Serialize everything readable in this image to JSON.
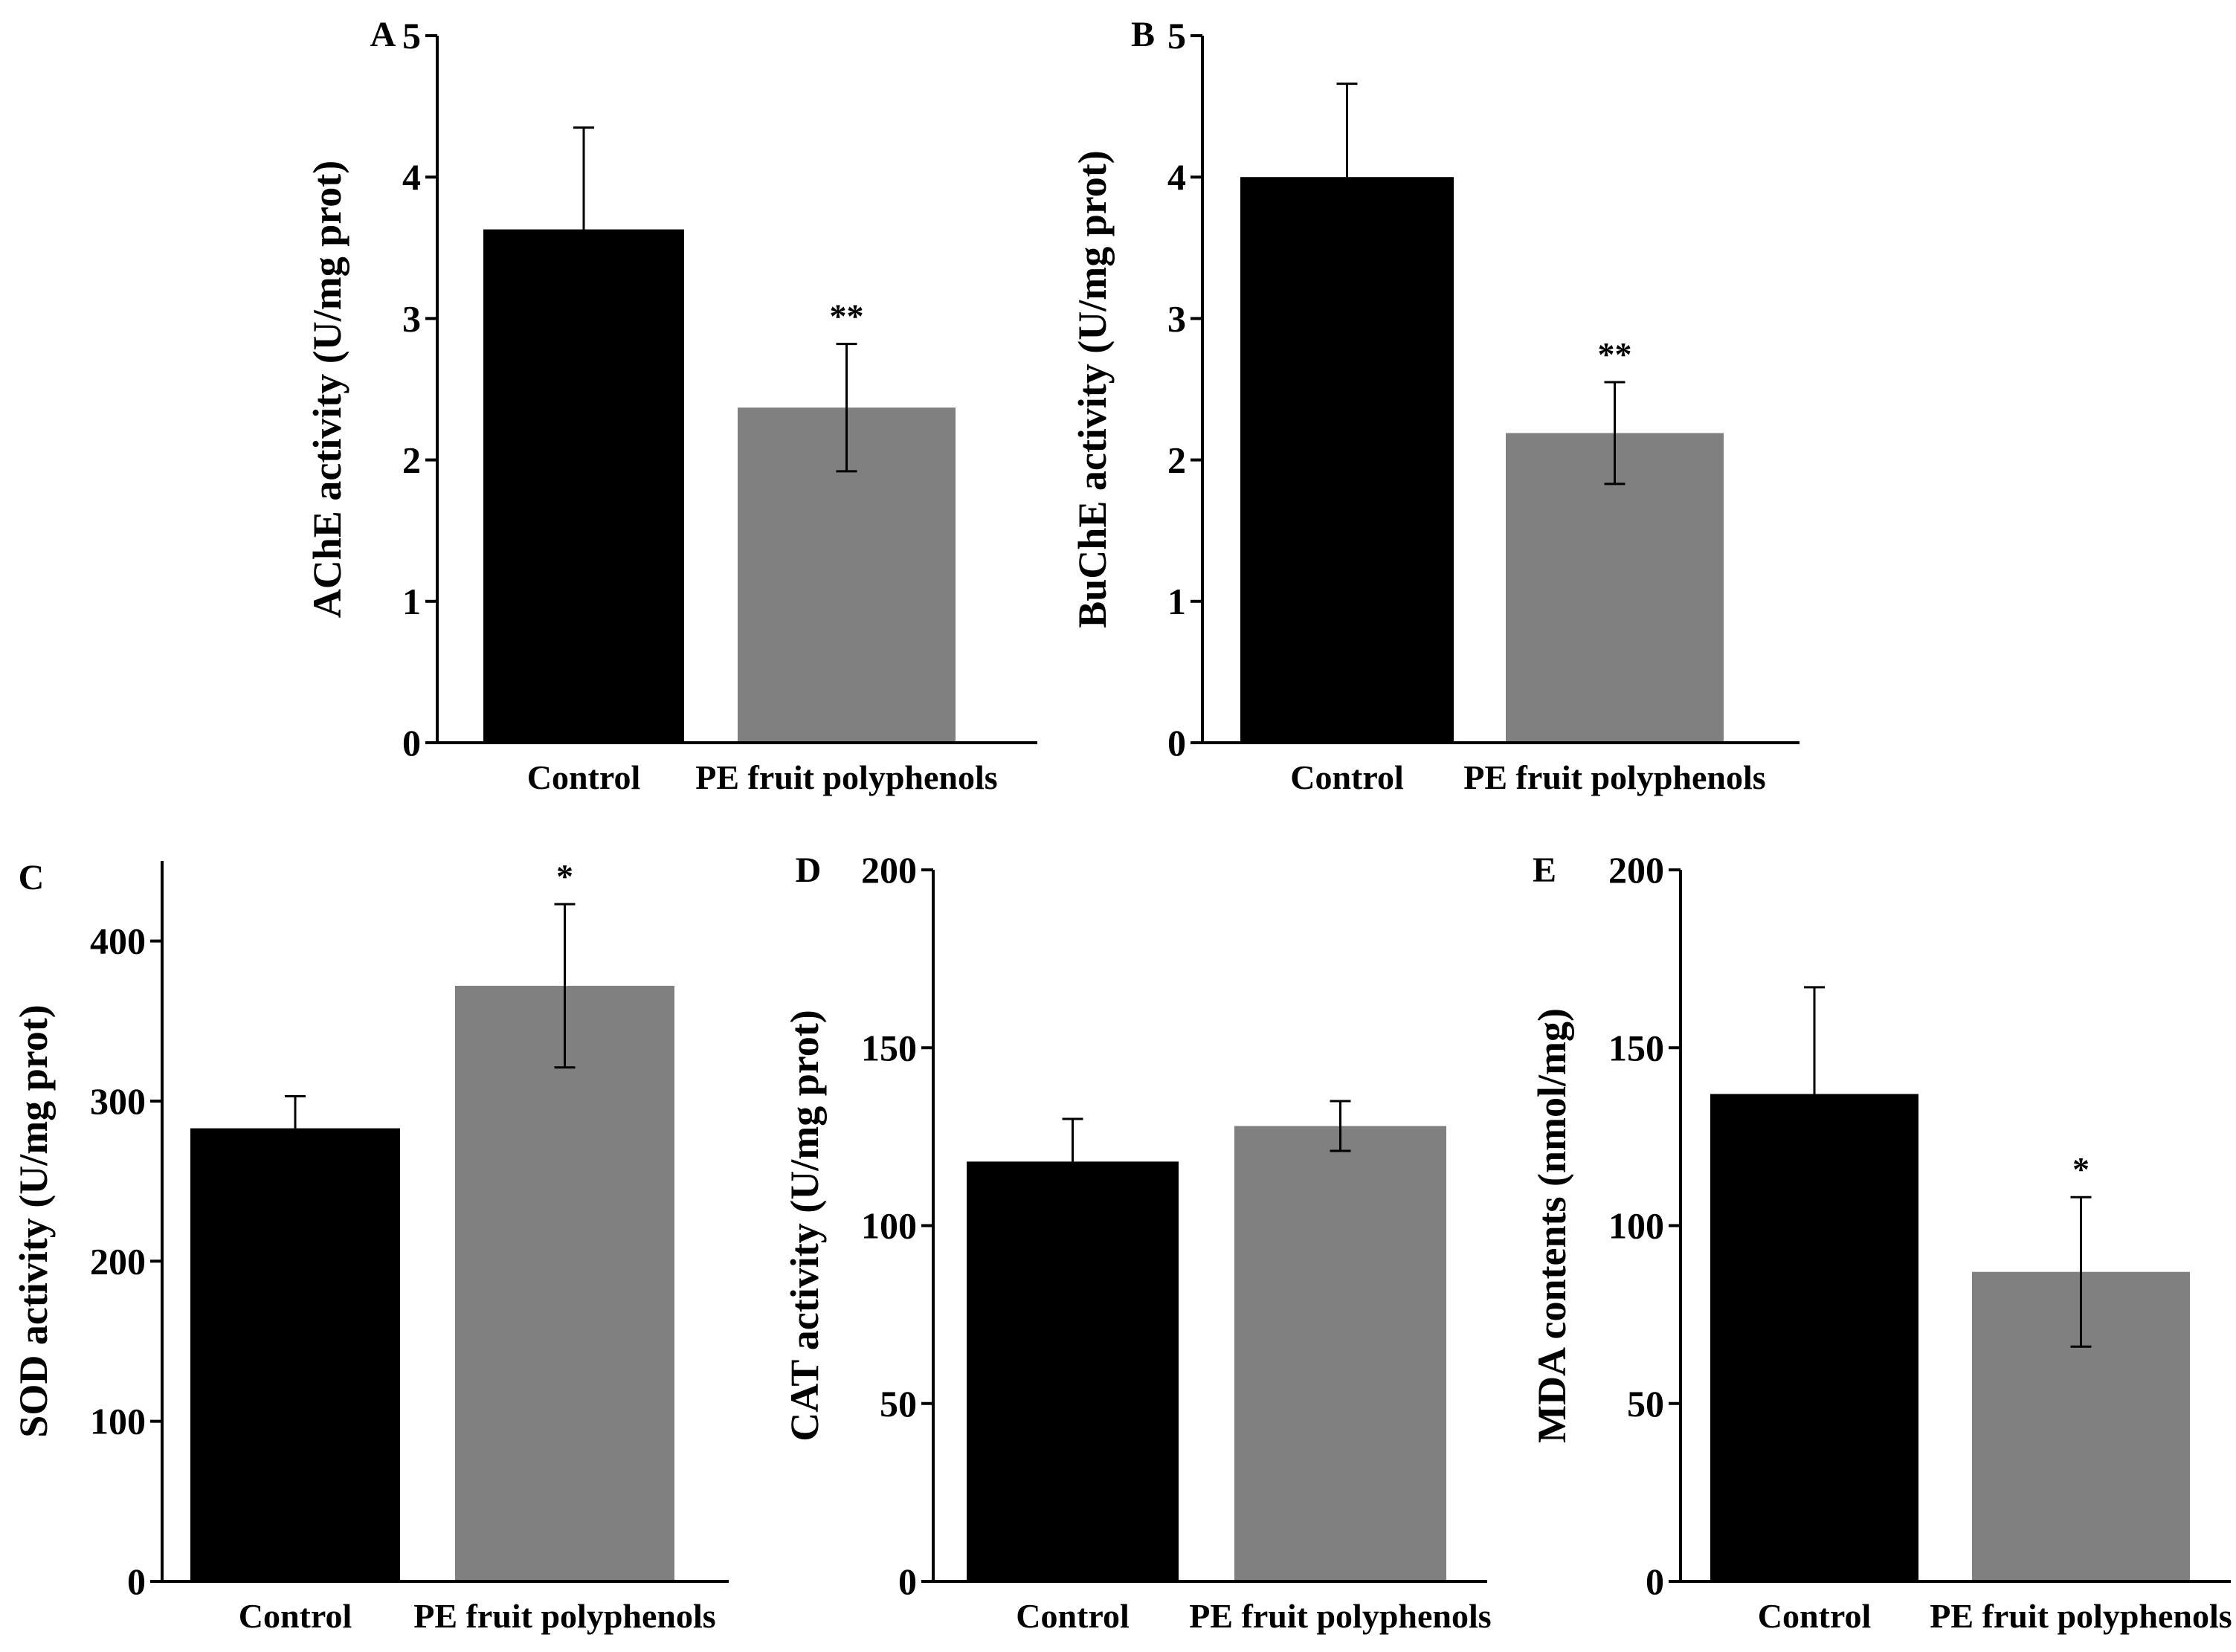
{
  "figure": {
    "colors": {
      "control": "#000000",
      "treatment": "#808080",
      "axis": "#000000",
      "background": "#ffffff"
    }
  },
  "chart_data": [
    {
      "id": "A",
      "type": "bar",
      "panel_label": "A",
      "categories": [
        "Control",
        "PE fruit polyphenols"
      ],
      "values": [
        3.63,
        2.37
      ],
      "errors": [
        0.72,
        0.45
      ],
      "significance": [
        "",
        "**"
      ],
      "ylabel": "AChE activity (U/mg prot)",
      "xlabel": "",
      "ylim": [
        0,
        5
      ],
      "yticks": [
        0,
        1,
        2,
        3,
        4,
        5
      ],
      "ytick_labels": [
        "0",
        "1",
        "2",
        "3",
        "4",
        "5"
      ]
    },
    {
      "id": "B",
      "type": "bar",
      "panel_label": "B",
      "categories": [
        "Control",
        "PE fruit polyphenols"
      ],
      "values": [
        4.0,
        2.19
      ],
      "errors": [
        0.66,
        0.36
      ],
      "significance": [
        "",
        "**"
      ],
      "ylabel": "BuChE activity (U/mg prot)",
      "xlabel": "",
      "ylim": [
        0,
        5
      ],
      "yticks": [
        0,
        1,
        2,
        3,
        4,
        5
      ],
      "ytick_labels": [
        "0",
        "1",
        "2",
        "3",
        "4",
        "5"
      ]
    },
    {
      "id": "C",
      "type": "bar",
      "panel_label": "C",
      "categories": [
        "Control",
        "PE fruit polyphenols"
      ],
      "values": [
        283,
        372
      ],
      "errors": [
        20,
        51
      ],
      "significance": [
        "",
        "*"
      ],
      "ylabel": "SOD activity (U/mg prot)",
      "xlabel": "",
      "ylim": [
        0,
        450
      ],
      "yticks": [
        0,
        100,
        200,
        300,
        400
      ],
      "ytick_labels": [
        "0",
        "100",
        "200",
        "300",
        "400"
      ]
    },
    {
      "id": "D",
      "type": "bar",
      "panel_label": "D",
      "categories": [
        "Control",
        "PE fruit polyphenols"
      ],
      "values": [
        118,
        128
      ],
      "errors": [
        12,
        7
      ],
      "significance": [
        "",
        ""
      ],
      "ylabel": "CAT activity (U/mg prot)",
      "xlabel": "",
      "ylim": [
        0,
        200
      ],
      "yticks": [
        0,
        50,
        100,
        150,
        200
      ],
      "ytick_labels": [
        "0",
        "50",
        "100",
        "150",
        "200"
      ]
    },
    {
      "id": "E",
      "type": "bar",
      "panel_label": "E",
      "categories": [
        "Control",
        "PE fruit polyphenols"
      ],
      "values": [
        137,
        87
      ],
      "errors": [
        30,
        21
      ],
      "significance": [
        "",
        "*"
      ],
      "ylabel": "MDA contents (nmol/mg)",
      "xlabel": "",
      "ylim": [
        0,
        200
      ],
      "yticks": [
        0,
        50,
        100,
        150,
        200
      ],
      "ytick_labels": [
        "0",
        "50",
        "100",
        "150",
        "200"
      ]
    }
  ]
}
